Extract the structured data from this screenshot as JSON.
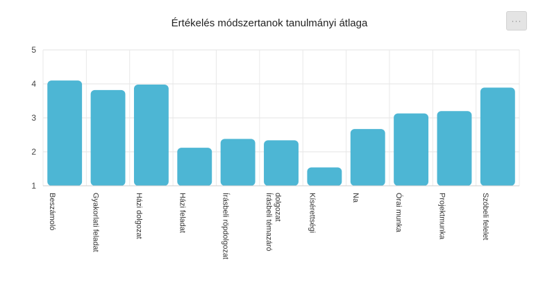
{
  "toolbar": {
    "menu_icon": "more-horizontal-icon",
    "menu_glyph": "···"
  },
  "chart_data": {
    "type": "bar",
    "title": "Értékelés módszertanok tanulmányi átlaga",
    "xlabel": "",
    "ylabel": "",
    "ylim": [
      1,
      5
    ],
    "yticks": [
      1,
      2,
      3,
      4,
      5
    ],
    "grid": true,
    "bar_color": "#4db6d4",
    "categories": [
      "Beszámoló",
      "Gyakorlati feladat",
      "Házi dolgozat",
      "Házi feladat",
      "Írásbeli röpdolgozat",
      "Írásbeli témazáró dolgozat",
      "Kísérettségi",
      "Na",
      "Órai munka",
      "Projektmunka",
      "Szóbeli felelet"
    ],
    "category_lines": [
      [
        "Beszámoló"
      ],
      [
        "Gyakorlati feladat"
      ],
      [
        "Házi dolgozat"
      ],
      [
        "Házi feladat"
      ],
      [
        "Írásbeli röpdolgozat"
      ],
      [
        "Írásbeli témazáró",
        "dolgozat"
      ],
      [
        "Kísérettségi"
      ],
      [
        "Na"
      ],
      [
        "Órai munka"
      ],
      [
        "Projektmunka"
      ],
      [
        "Szóbeli felelet"
      ]
    ],
    "values": [
      4.1,
      3.82,
      3.98,
      2.12,
      2.38,
      2.34,
      1.54,
      2.67,
      3.13,
      3.2,
      3.89
    ]
  }
}
